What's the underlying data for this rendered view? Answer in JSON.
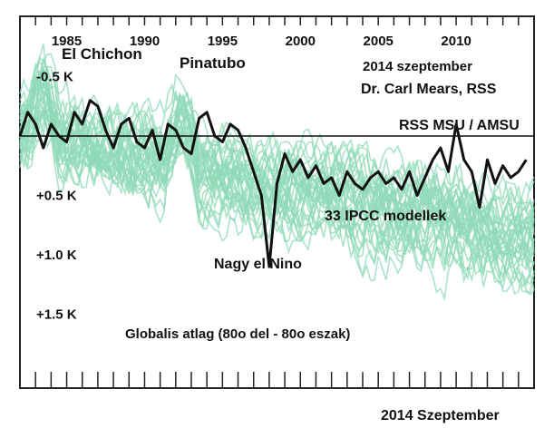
{
  "chart_data": {
    "type": "line",
    "x_axis": {
      "ticks": [
        "1985",
        "1990",
        "1995",
        "2000",
        "2005",
        "2010"
      ],
      "range": [
        1982,
        2015
      ]
    },
    "y_axis": {
      "ticks": [
        "-0.5 K",
        "+0.5 K",
        "+1.0 K",
        "+1.5 K"
      ],
      "range": [
        -1.0,
        2.1
      ]
    },
    "annotations": {
      "el_chichon": "El Chichon",
      "pinatubo": "Pinatubo",
      "source_date": "2014 szeptember",
      "source_name": "Dr. Carl Mears, RSS",
      "series_label": "RSS MSU / AMSU",
      "models_label": "33 IPCC modellek",
      "el_nino": "Nagy el Nino",
      "region": "Globalis atlag (80o del - 80o eszak)"
    },
    "footer": "2014 Szeptember",
    "observed": {
      "name": "RSS MSU / AMSU",
      "color": "#111111",
      "x": [
        1982.0,
        1982.5,
        1983.0,
        1983.5,
        1984.0,
        1984.5,
        1985.0,
        1985.5,
        1986.0,
        1986.5,
        1987.0,
        1987.5,
        1988.0,
        1988.5,
        1989.0,
        1989.5,
        1990.0,
        1990.5,
        1991.0,
        1991.5,
        1992.0,
        1992.5,
        1993.0,
        1993.5,
        1994.0,
        1994.5,
        1995.0,
        1995.5,
        1996.0,
        1996.5,
        1997.0,
        1997.5,
        1998.0,
        1998.5,
        1999.0,
        1999.5,
        2000.0,
        2000.5,
        2001.0,
        2001.5,
        2002.0,
        2002.5,
        2003.0,
        2003.5,
        2004.0,
        2004.5,
        2005.0,
        2005.5,
        2006.0,
        2006.5,
        2007.0,
        2007.5,
        2008.0,
        2008.5,
        2009.0,
        2009.5,
        2010.0,
        2010.5,
        2011.0,
        2011.5,
        2012.0,
        2012.5,
        2013.0,
        2013.5,
        2014.0,
        2014.5
      ],
      "y": [
        0.0,
        -0.2,
        -0.1,
        0.1,
        -0.1,
        0.0,
        0.05,
        -0.2,
        -0.1,
        -0.3,
        -0.25,
        -0.05,
        0.1,
        -0.1,
        -0.15,
        0.05,
        0.1,
        -0.05,
        0.2,
        -0.1,
        -0.05,
        0.1,
        0.15,
        -0.15,
        -0.2,
        0.0,
        0.05,
        -0.1,
        -0.05,
        0.1,
        0.3,
        0.5,
        1.1,
        0.4,
        0.15,
        0.3,
        0.2,
        0.35,
        0.25,
        0.4,
        0.35,
        0.5,
        0.3,
        0.4,
        0.45,
        0.35,
        0.3,
        0.4,
        0.35,
        0.45,
        0.3,
        0.5,
        0.35,
        0.2,
        0.1,
        0.3,
        -0.1,
        0.2,
        0.3,
        0.6,
        0.2,
        0.4,
        0.25,
        0.35,
        0.3,
        0.2
      ]
    },
    "models": {
      "name": "33 IPCC modellek",
      "color": "#8fd9b8",
      "count": 33
    }
  }
}
